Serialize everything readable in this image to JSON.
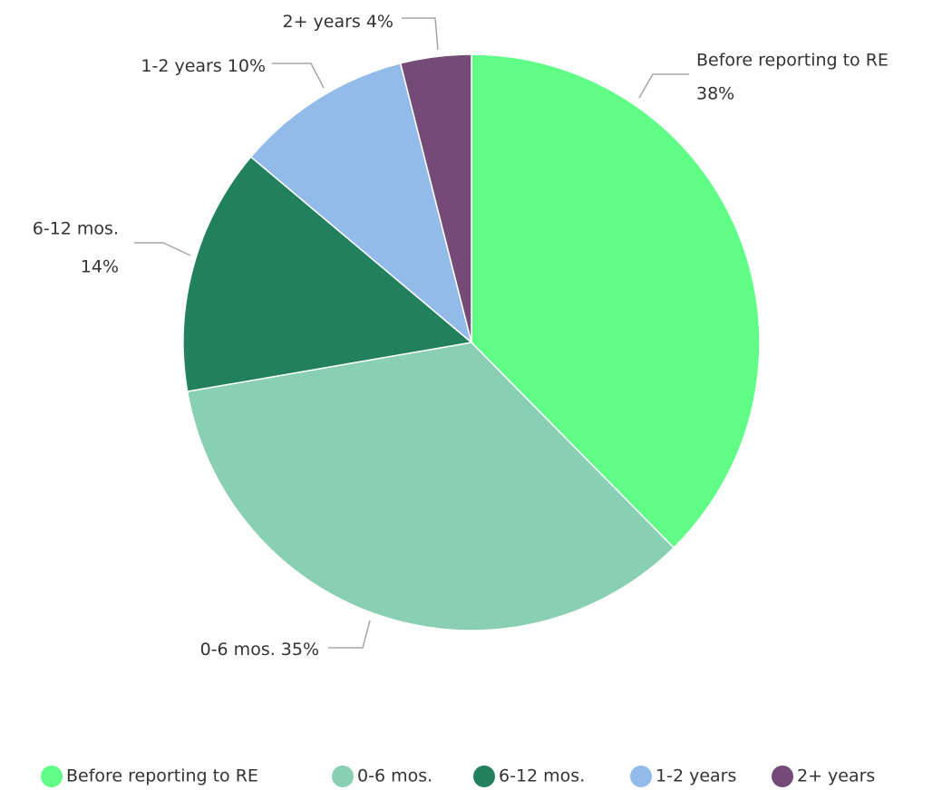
{
  "chart_data": {
    "type": "pie",
    "categories": [
      "Before reporting to RE",
      "0-6 mos.",
      "6-12 mos.",
      "1-2 years",
      "2+ years"
    ],
    "values": [
      38,
      35,
      14,
      10,
      4
    ],
    "value_labels": [
      "38%",
      "35%",
      "14%",
      "10%",
      "4%"
    ],
    "colors": [
      "#60fd87",
      "#88cfb4",
      "#22805f",
      "#93bbe9",
      "#744a77"
    ],
    "legend": "bottom"
  }
}
